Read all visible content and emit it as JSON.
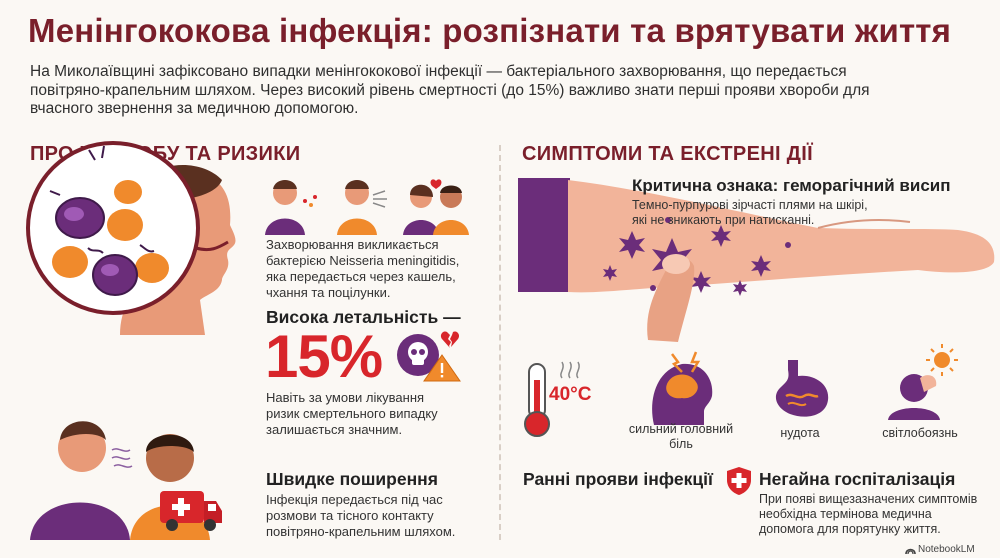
{
  "title": "Менінгококова інфекція: розпізнати та врятувати життя",
  "intro": "На Миколаївщині зафіксовано випадки менінгококової інфекції — бактеріального захворювання, що передається повітряно-крапельним шляхом. Через високий рівень смертності (до 15%) важливо знати перші прояви хвороби для вчасного звернення за медичною допомогою.",
  "left": {
    "heading": "ПРО ХВОРОБУ ТА РИЗИКИ",
    "cause_text": "Захворювання викликається бактерією Neisseria meningitidis, яка передається через кашель, чхання та поцілунки.",
    "lethality_title": "Висока летальність —",
    "lethality_value": "15%",
    "lethality_text": "Навіть за умови лікування ризик смертельного випадку залишається значним.",
    "spread_title": "Швидке поширення",
    "spread_text": "Інфекція передається під час розмови та тісного контакту повітряно-крапельним шляхом."
  },
  "right": {
    "heading": "СИМПТОМИ ТА ЕКСТРЕНІ ДІЇ",
    "rash_title": "Критична ознака: геморагічний висип",
    "rash_text": "Темно-пурпурові зірчасті плями на шкірі, які не зникають при натисканні.",
    "temperature": "40°C",
    "symptoms": [
      {
        "label": "сильний головний біль",
        "icon": "headache-icon"
      },
      {
        "label": "нудота",
        "icon": "stomach-icon"
      },
      {
        "label": "світлобоязнь",
        "icon": "photophobia-icon"
      }
    ],
    "early_title": "Ранні прояви інфекції",
    "hospital_title": "Негайна госпіталізація",
    "hospital_text": "При появі вищезазначених симптомів необхідна термінова медична допомога для порятунку життя."
  },
  "footer": "NotebookLM",
  "colors": {
    "accent": "#7a1f2b",
    "red": "#d8262b",
    "purple": "#6b2d7a",
    "orange": "#f08a2c"
  }
}
